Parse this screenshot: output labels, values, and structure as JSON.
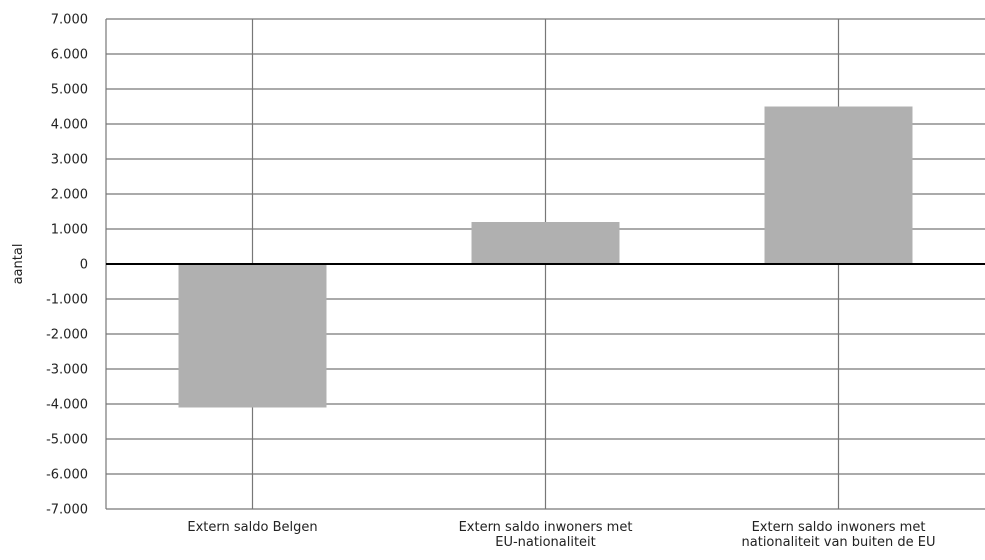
{
  "chart_data": {
    "type": "bar",
    "ylabel": "aantal",
    "ylim": [
      -7000,
      7000
    ],
    "ytick_step": 1000,
    "ytick_labels": [
      "7.000",
      "6.000",
      "5.000",
      "4.000",
      "3.000",
      "2.000",
      "1.000",
      "0",
      "-1.000",
      "-2.000",
      "-3.000",
      "-4.000",
      "-5.000",
      "-6.000",
      "-7.000"
    ],
    "categories": [
      [
        "Extern saldo Belgen"
      ],
      [
        "Extern saldo inwoners met",
        "EU-nationaliteit"
      ],
      [
        "Extern saldo inwoners met",
        "nationaliteit van buiten de EU"
      ]
    ],
    "values": [
      -4100,
      1200,
      4500
    ],
    "grid": true,
    "bar_color": "#b0b0b0",
    "grid_color": "#777777",
    "zero_line_color": "#000000"
  }
}
